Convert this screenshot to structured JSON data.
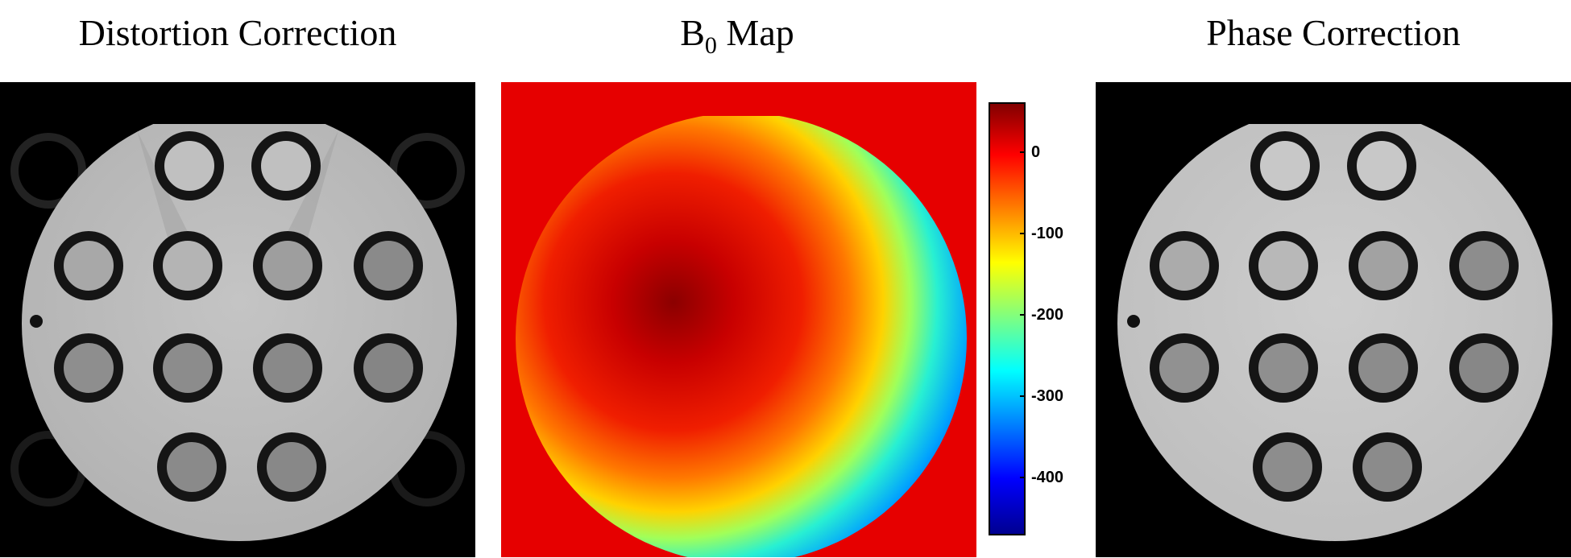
{
  "titles": {
    "left": "Distortion Correction",
    "center_main": "B",
    "center_sub": "0",
    "center_rest": " Map",
    "right": "Phase Correction"
  },
  "colorbar": {
    "colormap": "jet",
    "ticks": [
      "0",
      "-100",
      "-200",
      "-300",
      "-400"
    ],
    "range": [
      -470,
      60
    ]
  },
  "colors": {
    "background": "#ffffff",
    "panel_bg": "#000000",
    "map_outside": "#e60000",
    "phantom_gray": "#c8c8c8",
    "vial_ring": "#1a1a1a"
  }
}
